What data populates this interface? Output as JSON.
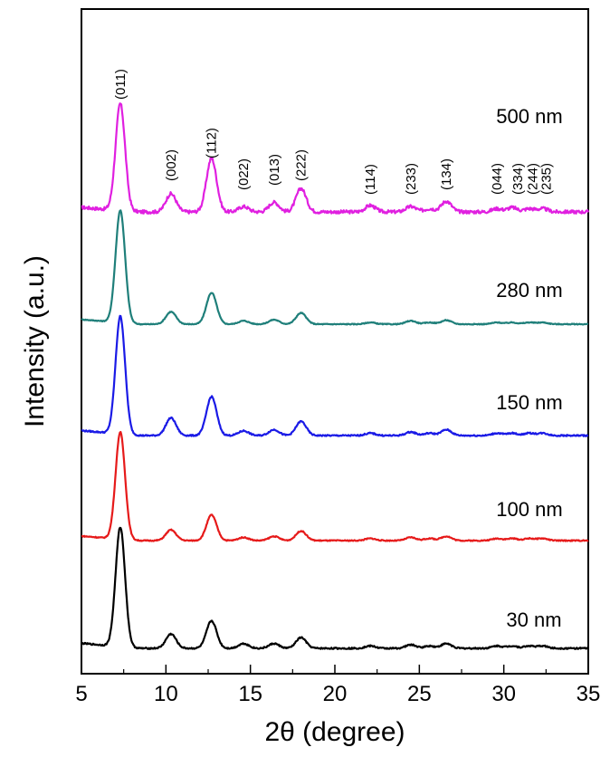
{
  "chart_data": {
    "type": "line",
    "title": "",
    "xlabel": "2θ (degree)",
    "ylabel": "Intensity (a.u.)",
    "xlim": [
      5,
      35
    ],
    "x_ticks": [
      5,
      10,
      15,
      20,
      25,
      30,
      35
    ],
    "x_tick_labels": [
      "5",
      "10",
      "15",
      "20",
      "25",
      "30",
      "35"
    ],
    "y_ticks_shown": false,
    "grid": false,
    "peaks": [
      {
        "pos": 7.3,
        "width": 0.28
      },
      {
        "pos": 10.3,
        "width": 0.3
      },
      {
        "pos": 12.7,
        "width": 0.3
      },
      {
        "pos": 14.6,
        "width": 0.3
      },
      {
        "pos": 16.4,
        "width": 0.3
      },
      {
        "pos": 18.0,
        "width": 0.3
      },
      {
        "pos": 22.1,
        "width": 0.3
      },
      {
        "pos": 24.5,
        "width": 0.3
      },
      {
        "pos": 25.6,
        "width": 0.3
      },
      {
        "pos": 26.6,
        "width": 0.3
      },
      {
        "pos": 29.6,
        "width": 0.3
      },
      {
        "pos": 30.5,
        "width": 0.3
      },
      {
        "pos": 31.5,
        "width": 0.3
      },
      {
        "pos": 32.3,
        "width": 0.3
      }
    ],
    "series": [
      {
        "name": "500 nm",
        "color": "#e020e0",
        "amplitudes": [
          100,
          17,
          50,
          5,
          9,
          22,
          6,
          5,
          3,
          10,
          3,
          4,
          3,
          3
        ],
        "noise": 1.6
      },
      {
        "name": "280 nm",
        "color": "#1f7f7a",
        "amplitudes": [
          100,
          11,
          28,
          3,
          4,
          10,
          1.5,
          3,
          1.5,
          3.5,
          1.5,
          1.5,
          1.5,
          1.5
        ],
        "noise": 0.4
      },
      {
        "name": "150 nm",
        "color": "#1a1ae6",
        "amplitudes": [
          100,
          15,
          33,
          4,
          5,
          12,
          2,
          3,
          2,
          5,
          2,
          2,
          2,
          2
        ],
        "noise": 0.6
      },
      {
        "name": "100 nm",
        "color": "#e61a1a",
        "amplitudes": [
          100,
          10,
          24,
          3,
          4,
          9,
          2,
          3,
          2,
          4,
          2,
          2,
          2,
          2
        ],
        "noise": 0.5
      },
      {
        "name": "30 nm",
        "color": "#000000",
        "amplitudes": [
          100,
          12,
          23,
          4,
          4,
          9,
          2,
          3,
          2,
          4,
          2,
          2,
          2,
          2
        ],
        "noise": 0.6
      }
    ],
    "peak_annotations": [
      {
        "label": "(011)",
        "x": 7.3
      },
      {
        "label": "(002)",
        "x": 10.3
      },
      {
        "label": "(112)",
        "x": 12.7
      },
      {
        "label": "(022)",
        "x": 14.6
      },
      {
        "label": "(013)",
        "x": 16.4
      },
      {
        "label": "(222)",
        "x": 18.0
      },
      {
        "label": "(114)",
        "x": 22.1
      },
      {
        "label": "(233)",
        "x": 24.5
      },
      {
        "label": "(134)",
        "x": 26.6
      },
      {
        "label": "(044)",
        "x": 29.6
      },
      {
        "label": "(334)",
        "x": 30.5
      },
      {
        "label": "(244)",
        "x": 31.5
      },
      {
        "label": "(235)",
        "x": 32.3
      }
    ]
  }
}
